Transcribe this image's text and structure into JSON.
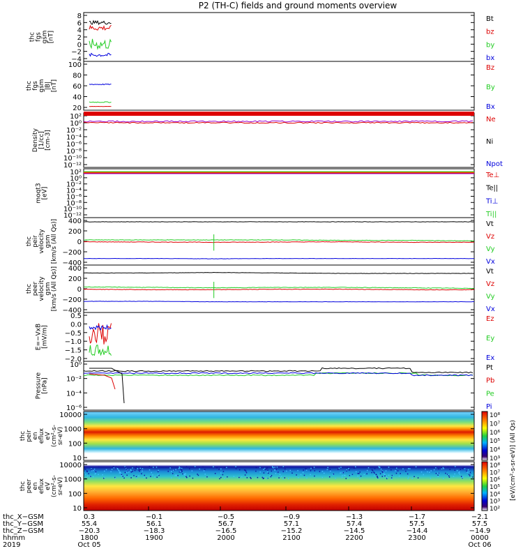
{
  "title": "P2 (TH-C) fields and ground moments overview",
  "colors": {
    "black": "#000000",
    "red": "#dd0000",
    "green": "#22cc22",
    "blue": "#0000dd",
    "purple": "#9900cc",
    "orange": "#ff7700"
  },
  "panels": [
    {
      "key": "fgs",
      "ylabel": [
        "thc",
        "fgs",
        "gsm",
        "[nT]"
      ],
      "ticks": [
        "8",
        "6",
        "4",
        "2",
        "0",
        "−2",
        "−4"
      ],
      "legend": [
        [
          "Bt",
          "black"
        ],
        [
          "bz",
          "red"
        ],
        [
          "by",
          "green"
        ],
        [
          "bx",
          "blue"
        ]
      ]
    },
    {
      "key": "fgs2",
      "ylabel": [
        "thc",
        "fgs",
        "gsm",
        "|B|",
        "[nT]"
      ],
      "ticks": [
        "100",
        "80",
        "60",
        "40",
        "20"
      ],
      "legend": [
        [
          "Bz",
          "red"
        ],
        [
          "By",
          "green"
        ],
        [
          "Bx",
          "blue"
        ]
      ]
    },
    {
      "key": "dens",
      "ylabel": [
        "Density",
        "[1/cc]",
        "[cm-3]"
      ],
      "ticks": [
        "10²",
        "10⁰",
        "10⁻²",
        "10⁻⁴",
        "10⁻⁶",
        "10⁻⁸",
        "10⁻¹⁰",
        "10⁻¹²"
      ],
      "legend": [
        [
          "Ne",
          "red"
        ],
        [
          "Ni",
          "black"
        ],
        [
          "Npot",
          "blue"
        ]
      ]
    },
    {
      "key": "temp",
      "ylabel": [
        "moqt3",
        "[eV]"
      ],
      "ticks": [
        "10²",
        "10⁰",
        "10⁻²",
        "10⁻⁴",
        "10⁻⁶",
        "10⁻⁸",
        "10⁻¹⁰",
        "10⁻¹²"
      ],
      "legend": [
        [
          "Te⊥",
          "red"
        ],
        [
          "Te||",
          "black"
        ],
        [
          "Ti⊥",
          "blue"
        ],
        [
          "Ti||",
          "green"
        ]
      ]
    },
    {
      "key": "vi",
      "ylabel": [
        "thc",
        "peir",
        "velocity",
        "gsm",
        "[km/s (All Qs)]"
      ],
      "ticks": [
        "400",
        "200",
        "0",
        "−200",
        "−400"
      ],
      "legend": [
        [
          "Vt",
          "black"
        ],
        [
          "Vz",
          "red"
        ],
        [
          "Vy",
          "green"
        ],
        [
          "Vx",
          "blue"
        ]
      ]
    },
    {
      "key": "ve",
      "ylabel": [
        "thc",
        "peer",
        "velocity",
        "gsm",
        "[km/s (All Qs)]"
      ],
      "ticks": [
        "400",
        "200",
        "0",
        "−200",
        "−400"
      ],
      "legend": [
        [
          "Vt",
          "black"
        ],
        [
          "Vz",
          "red"
        ],
        [
          "Vy",
          "green"
        ],
        [
          "Vx",
          "blue"
        ]
      ]
    },
    {
      "key": "efield",
      "ylabel": [
        "E=−VxB",
        "[mV/m]"
      ],
      "ticks": [
        "0.5",
        "0.0",
        "−0.5",
        "−1.0",
        "−1.5",
        "−2.0"
      ],
      "legend": [
        [
          "Ez",
          "red"
        ],
        [
          "Ey",
          "green"
        ],
        [
          "Ex",
          "blue"
        ]
      ]
    },
    {
      "key": "press",
      "ylabel": [
        "Pressure",
        "[nPa]"
      ],
      "ticks": [
        "10⁰",
        "10⁻²",
        "10⁻⁴",
        "10⁻⁶"
      ],
      "legend": [
        [
          "Pt",
          "black"
        ],
        [
          "Pb",
          "red"
        ],
        [
          "Pe",
          "green"
        ],
        [
          "Pi",
          "blue"
        ]
      ]
    },
    {
      "key": "ispec",
      "ylabel": [
        "thc",
        "peir",
        "en",
        "eflux",
        "eV",
        "(cm²-s-",
        "sr-eV)"
      ],
      "ticks": [
        "10000",
        "1000",
        "100",
        "10"
      ],
      "legend": []
    },
    {
      "key": "espec",
      "ylabel": [
        "thc",
        "peer",
        "en",
        "eflux",
        "eV",
        "(cm²-s-",
        "sr-eV)"
      ],
      "ticks": [
        "10000",
        "1000",
        "100",
        "10"
      ],
      "legend": []
    }
  ],
  "colorbar": {
    "label": "[eV/(cm²-s-sr-eV)] (All Qs)",
    "ticks": [
      "10⁸",
      "10⁷",
      "10⁶",
      "10⁵",
      "10⁴",
      "10³"
    ]
  },
  "colorbar2": {
    "ticks": [
      "10⁸",
      "10⁷",
      "10⁶",
      "10⁵",
      "10⁴",
      "10³",
      "10²"
    ]
  },
  "xaxis": {
    "row_labels": [
      "thc_X−GSM",
      "thc_Y−GSM",
      "thc_Z−GSM",
      "hhmm",
      "2019"
    ],
    "columns": [
      [
        "0.3",
        "55.4",
        "−20.3",
        "1800",
        "Oct 05"
      ],
      [
        "−0.1",
        "56.1",
        "−18.3",
        "1900",
        ""
      ],
      [
        "−0.5",
        "56.7",
        "−16.5",
        "2000",
        ""
      ],
      [
        "−0.9",
        "57.1",
        "−15.2",
        "2100",
        ""
      ],
      [
        "−1.3",
        "57.4",
        "−14.5",
        "2200",
        ""
      ],
      [
        "−1.7",
        "57.5",
        "−14.4",
        "2300",
        ""
      ],
      [
        "−2.1",
        "57.5",
        "−14.9",
        "0000",
        "Oct 06"
      ]
    ]
  },
  "chart_data": {
    "type": "line",
    "title": "P2 (TH-C) fields and ground moments overview",
    "x_hours": [
      18,
      19,
      20,
      21,
      22,
      23,
      24
    ],
    "x_tick_labels": [
      "1800",
      "1900",
      "2000",
      "2100",
      "2200",
      "2300",
      "0000"
    ],
    "panels": [
      {
        "name": "fgs",
        "ylim": [
          -4,
          8
        ],
        "series": [
          {
            "name": "Bt",
            "values_approx": [
              6,
              6,
              5.5
            ]
          },
          {
            "name": "bz",
            "values_approx": [
              5,
              4.5,
              4.5
            ]
          },
          {
            "name": "by",
            "values_approx": [
              0,
              -2,
              1
            ]
          },
          {
            "name": "bx",
            "values_approx": [
              -2,
              -3,
              -3
            ]
          }
        ]
      },
      {
        "name": "fgs2",
        "ylim": [
          10,
          100
        ],
        "series": [
          {
            "name": "Bx",
            "values_approx": [
              60,
              58,
              58
            ]
          },
          {
            "name": "By",
            "values_approx": [
              20,
              22,
              22
            ]
          },
          {
            "name": "Bz",
            "values_approx": [
              12,
              12,
              12
            ]
          }
        ]
      },
      {
        "name": "vi",
        "ylim": [
          -450,
          450
        ],
        "series": [
          {
            "name": "Vt",
            "values": [
              420,
              420,
              420,
              420,
              420,
              420,
              420
            ]
          },
          {
            "name": "Vy",
            "values": [
              30,
              30,
              30,
              30,
              20,
              20,
              10
            ]
          },
          {
            "name": "Vz",
            "values": [
              -10,
              -15,
              -20,
              -15,
              -10,
              -20,
              -20
            ]
          },
          {
            "name": "Vx",
            "values": [
              -370,
              -370,
              -375,
              -370,
              -370,
              -370,
              -370
            ]
          }
        ]
      },
      {
        "name": "ve",
        "ylim": [
          -450,
          450
        ],
        "series": [
          {
            "name": "Vt",
            "values": [
              340,
              340,
              350,
              340,
              330,
              330,
              330
            ]
          },
          {
            "name": "Vy",
            "values": [
              40,
              30,
              20,
              30,
              30,
              20,
              10
            ]
          },
          {
            "name": "Vz",
            "values": [
              -10,
              -20,
              -20,
              -10,
              -10,
              -20,
              -20
            ]
          },
          {
            "name": "Vx",
            "values": [
              -270,
              -270,
              -280,
              -280,
              -280,
              -280,
              -280
            ]
          }
        ]
      }
    ]
  }
}
